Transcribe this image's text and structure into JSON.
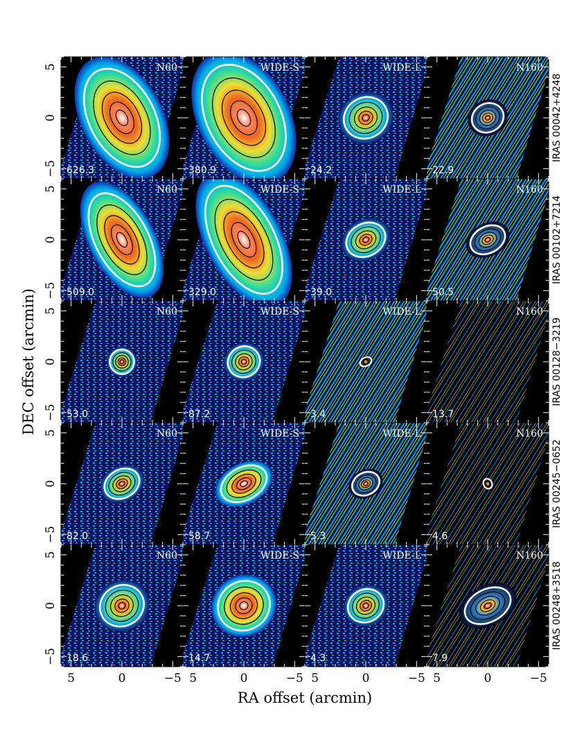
{
  "figure": {
    "x_axis_title": "RA offset (arcmin)",
    "y_axis_title": "DEC offset (arcmin)",
    "x_ticks": [
      "5",
      "0",
      "−5"
    ],
    "y_ticks": [
      "5",
      "0",
      "−5"
    ],
    "band_labels": [
      "N60",
      "WIDE-S",
      "WIDE-L",
      "N160"
    ],
    "rows": [
      {
        "source": "IRAS 00042+4248",
        "values": [
          "626.3",
          "380.9",
          "24.2",
          "22.9"
        ]
      },
      {
        "source": "IRAS 00102+7214",
        "values": [
          "509.0",
          "329.0",
          "39.0",
          "50.5"
        ]
      },
      {
        "source": "IRAS 00128−3219",
        "values": [
          "53.0",
          "87.2",
          "3.4",
          "13.7"
        ]
      },
      {
        "source": "IRAS 00245−0652",
        "values": [
          "82.0",
          "58.7",
          "5.3",
          "4.6"
        ]
      },
      {
        "source": "IRAS 00248+3518",
        "values": [
          "18.6",
          "14.7",
          "4.3",
          "7.9"
        ]
      }
    ],
    "colors": {
      "background": "#000000",
      "low": "#1a1a8c",
      "mid_low": "#00aaff",
      "mid": "#33ddaa",
      "mid_high": "#eeee33",
      "high": "#ff7722",
      "peak": "#ffdddd",
      "outer_contour": "#ffffff",
      "inner_contour": "#000000"
    }
  }
}
